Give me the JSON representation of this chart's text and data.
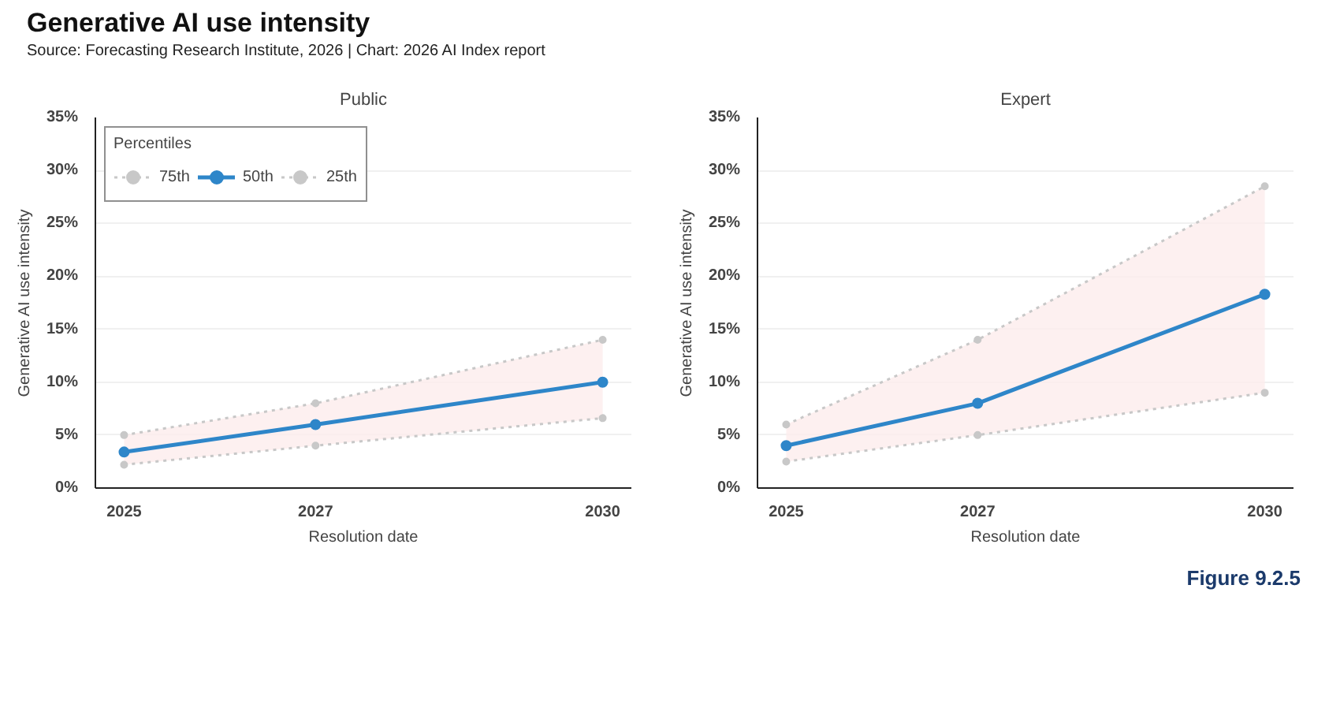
{
  "chart_data": [
    {
      "type": "line",
      "title": "Generative AI use intensity",
      "subtitle": "Source: Forecasting Research Institute, 2026 | Chart: 2026 AI Index report",
      "annotations": [
        "Public"
      ],
      "xlabel": "Resolution date",
      "ylabel": "Generative AI use intensity",
      "legend_title": "Percentiles",
      "legend": "top left",
      "grid": "y",
      "marker": "circle",
      "x": [
        2025,
        2027,
        2030
      ],
      "xlim": [
        2024.7,
        2030.3
      ],
      "xticks": [
        2025,
        2027,
        2030
      ],
      "ylim": [
        0,
        35
      ],
      "yticks": [
        {
          "value": 0,
          "label": "0%"
        },
        {
          "value": 5,
          "label": "5%"
        },
        {
          "value": 10,
          "label": "10%"
        },
        {
          "value": 15,
          "label": "15%"
        },
        {
          "value": 20,
          "label": "20%"
        },
        {
          "value": 25,
          "label": "25%"
        },
        {
          "value": 30,
          "label": "30%"
        },
        {
          "value": 35,
          "label": "35%"
        }
      ],
      "series": [
        {
          "name": "75th",
          "color": "#c8c8c8",
          "line_style": "dotted",
          "values": [
            5,
            8,
            14
          ]
        },
        {
          "name": "50th",
          "color": "#2e86c9",
          "line_style": "solid",
          "values": [
            3.4,
            6,
            10
          ],
          "lower": [
            2.2,
            4,
            6.6
          ],
          "upper": [
            5,
            8,
            14
          ]
        },
        {
          "name": "25th",
          "color": "#c8c8c8",
          "line_style": "dotted",
          "values": [
            2.2,
            4,
            6.6
          ]
        }
      ]
    },
    {
      "type": "line",
      "title": "Expert",
      "annotations": [
        "Figure 9.2.5"
      ],
      "xlabel": "Resolution date",
      "ylabel": "Generative AI use intensity",
      "grid": "y",
      "marker": "circle",
      "x": [
        2025,
        2027,
        2030
      ],
      "xlim": [
        2024.7,
        2030.3
      ],
      "xticks": [
        2025,
        2027,
        2030
      ],
      "ylim": [
        0,
        35
      ],
      "yticks": [
        {
          "value": 0,
          "label": "0%"
        },
        {
          "value": 5,
          "label": "5%"
        },
        {
          "value": 10,
          "label": "10%"
        },
        {
          "value": 15,
          "label": "15%"
        },
        {
          "value": 20,
          "label": "20%"
        },
        {
          "value": 25,
          "label": "25%"
        },
        {
          "value": 30,
          "label": "30%"
        },
        {
          "value": 35,
          "label": "35%"
        }
      ],
      "series": [
        {
          "color": "#c8c8c8",
          "line_style": "dotted",
          "values": [
            6,
            14,
            28.5
          ]
        },
        {
          "color": "#2e86c9",
          "line_style": "solid",
          "values": [
            4,
            8,
            18.3
          ],
          "lower": [
            2.5,
            5,
            9
          ],
          "upper": [
            6,
            14,
            28.5
          ]
        },
        {
          "color": "#c8c8c8",
          "line_style": "dotted",
          "values": [
            2.5,
            5,
            9
          ]
        }
      ]
    }
  ]
}
